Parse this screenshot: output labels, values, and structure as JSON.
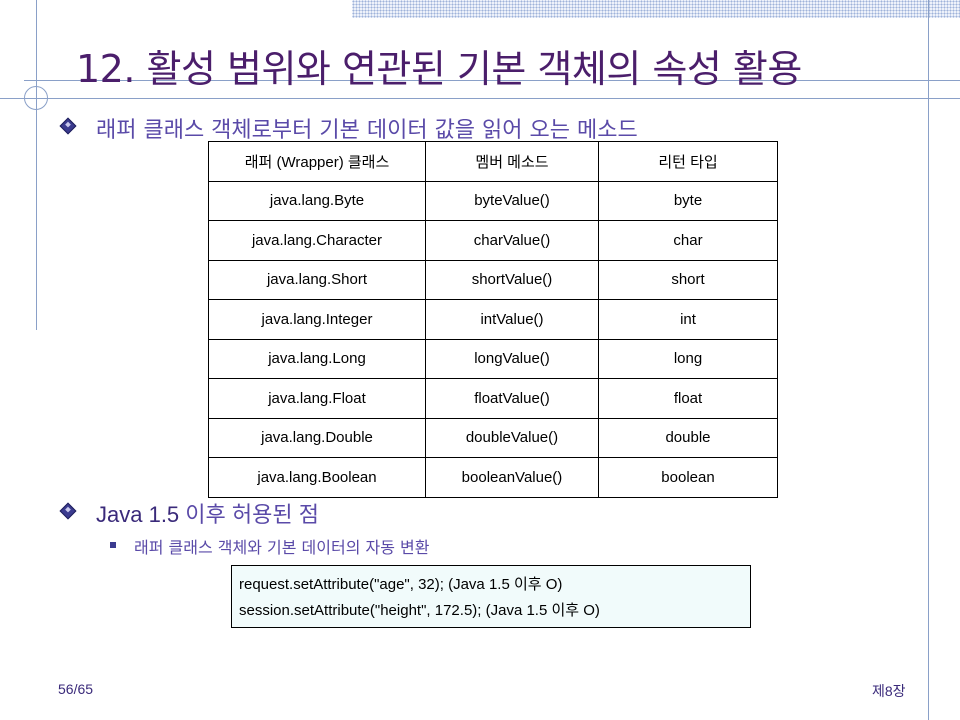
{
  "slide": {
    "title": "12. 활성 범위와 연관된 기본 객체의 속성 활용",
    "section1": "래퍼 클래스 객체로부터 기본 데이터 값을 읽어 오는 메소드",
    "table": {
      "headers": [
        "래퍼 (Wrapper) 클래스",
        "멤버 메소드",
        "리턴 타입"
      ],
      "rows": [
        [
          "java.lang.Byte",
          "byteValue()",
          "byte"
        ],
        [
          "java.lang.Character",
          "charValue()",
          "char"
        ],
        [
          "java.lang.Short",
          "shortValue()",
          "short"
        ],
        [
          "java.lang.Integer",
          "intValue()",
          "int"
        ],
        [
          "java.lang.Long",
          "longValue()",
          "long"
        ],
        [
          "java.lang.Float",
          "floatValue()",
          "float"
        ],
        [
          "java.lang.Double",
          "doubleValue()",
          "double"
        ],
        [
          "java.lang.Boolean",
          "booleanValue()",
          "boolean"
        ]
      ]
    },
    "section2_java": "Java 1.5",
    "section2_rest": " 이후 허용된 점",
    "subitem": "래퍼 클래스 객체와 기본 데이터의 자동 변환",
    "code": [
      "request.setAttribute(\"age\", 32); (Java 1.5 이후 O)",
      "session.setAttribute(\"height\", 172.5); (Java 1.5 이후 O)"
    ],
    "page_number": "56/65",
    "chapter": "제8장"
  },
  "colors": {
    "title": "#4b1e6b",
    "heading": "#5a4aa8",
    "frame_line": "#8aa0c8",
    "code_bg": "#f1fbfb"
  },
  "icons": [
    "diamond-bullet-icon",
    "square-bullet-icon"
  ]
}
